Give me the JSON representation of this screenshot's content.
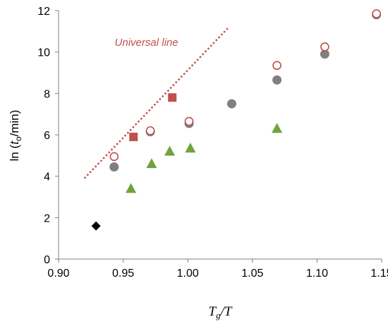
{
  "chart_data": {
    "type": "scatter",
    "xlabel_parts": {
      "base": "T",
      "sub": "g",
      "rest": "/T"
    },
    "ylabel_parts": {
      "pre": "ln (",
      "base": "t",
      "sub": "o",
      "rest": "/min)"
    },
    "xlim": [
      0.9,
      1.15
    ],
    "ylim": [
      0,
      12
    ],
    "xticks": [
      "0.90",
      "0.95",
      "1.00",
      "1.05",
      "1.10",
      "1.15"
    ],
    "yticks": [
      "0",
      "2",
      "4",
      "6",
      "8",
      "10",
      "12"
    ],
    "grid": false,
    "colors": {
      "red": "#c0504d",
      "gray": "#808080",
      "green": "#70a33c",
      "black": "#000000"
    },
    "series": [
      {
        "marker": "circle-filled",
        "color": "#808080",
        "points": [
          [
            0.943,
            4.45
          ],
          [
            0.971,
            6.15
          ],
          [
            1.001,
            6.55
          ],
          [
            1.034,
            7.5
          ],
          [
            1.069,
            8.65
          ],
          [
            1.106,
            9.9
          ],
          [
            1.146,
            11.8
          ]
        ]
      },
      {
        "marker": "circle-open",
        "color": "#c0504d",
        "points": [
          [
            0.943,
            4.95
          ],
          [
            0.971,
            6.2
          ],
          [
            1.001,
            6.65
          ],
          [
            1.069,
            9.35
          ],
          [
            1.106,
            10.25
          ],
          [
            1.146,
            11.85
          ]
        ]
      },
      {
        "marker": "square",
        "color": "#c0504d",
        "points": [
          [
            0.958,
            5.9
          ],
          [
            0.988,
            7.8
          ]
        ]
      },
      {
        "marker": "triangle",
        "color": "#70a33c",
        "points": [
          [
            0.956,
            3.4
          ],
          [
            0.972,
            4.6
          ],
          [
            0.986,
            5.2
          ],
          [
            1.002,
            5.35
          ],
          [
            1.069,
            6.3
          ]
        ]
      },
      {
        "marker": "diamond",
        "color": "#000000",
        "points": [
          [
            0.929,
            1.6
          ]
        ]
      }
    ],
    "lines": [
      {
        "style": "dotted",
        "color": "#c0504d",
        "points": [
          [
            0.92,
            3.9
          ],
          [
            1.031,
            11.15
          ]
        ]
      }
    ],
    "annotations": [
      {
        "text": "Universal line",
        "x": 0.968,
        "y": 10.3
      }
    ]
  }
}
